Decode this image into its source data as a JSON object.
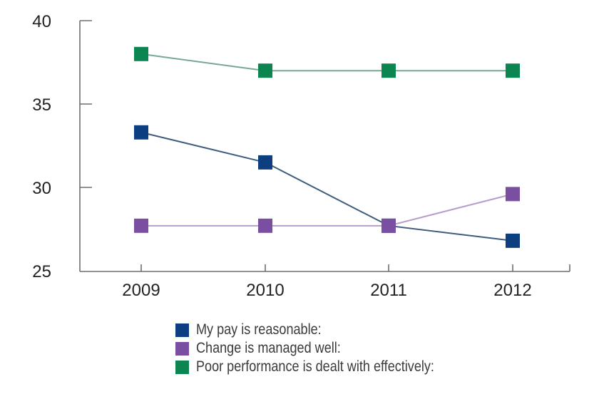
{
  "chart_data": {
    "type": "line",
    "title": "",
    "xlabel": "",
    "ylabel": "",
    "categories": [
      "2009",
      "2010",
      "2011",
      "2012"
    ],
    "ylim": [
      25,
      40
    ],
    "yticks": [
      25,
      30,
      35,
      40
    ],
    "ytick_labels": [
      "25",
      "30",
      "35",
      "40"
    ],
    "grid": false,
    "legend_position": "bottom",
    "series": [
      {
        "name": "My pay is reasonable:",
        "color": "#0d3f80",
        "line_color": "#3e5d7e",
        "values": [
          33.3,
          31.5,
          27.7,
          26.8
        ]
      },
      {
        "name": "Change is managed well:",
        "color": "#7a4ea0",
        "line_color": "#b79ccc",
        "values": [
          27.7,
          27.7,
          27.7,
          29.6
        ]
      },
      {
        "name": "Poor performance is dealt with effectively:",
        "color": "#0c8550",
        "line_color": "#76a894",
        "values": [
          38.0,
          37.0,
          37.0,
          37.0
        ]
      }
    ]
  }
}
